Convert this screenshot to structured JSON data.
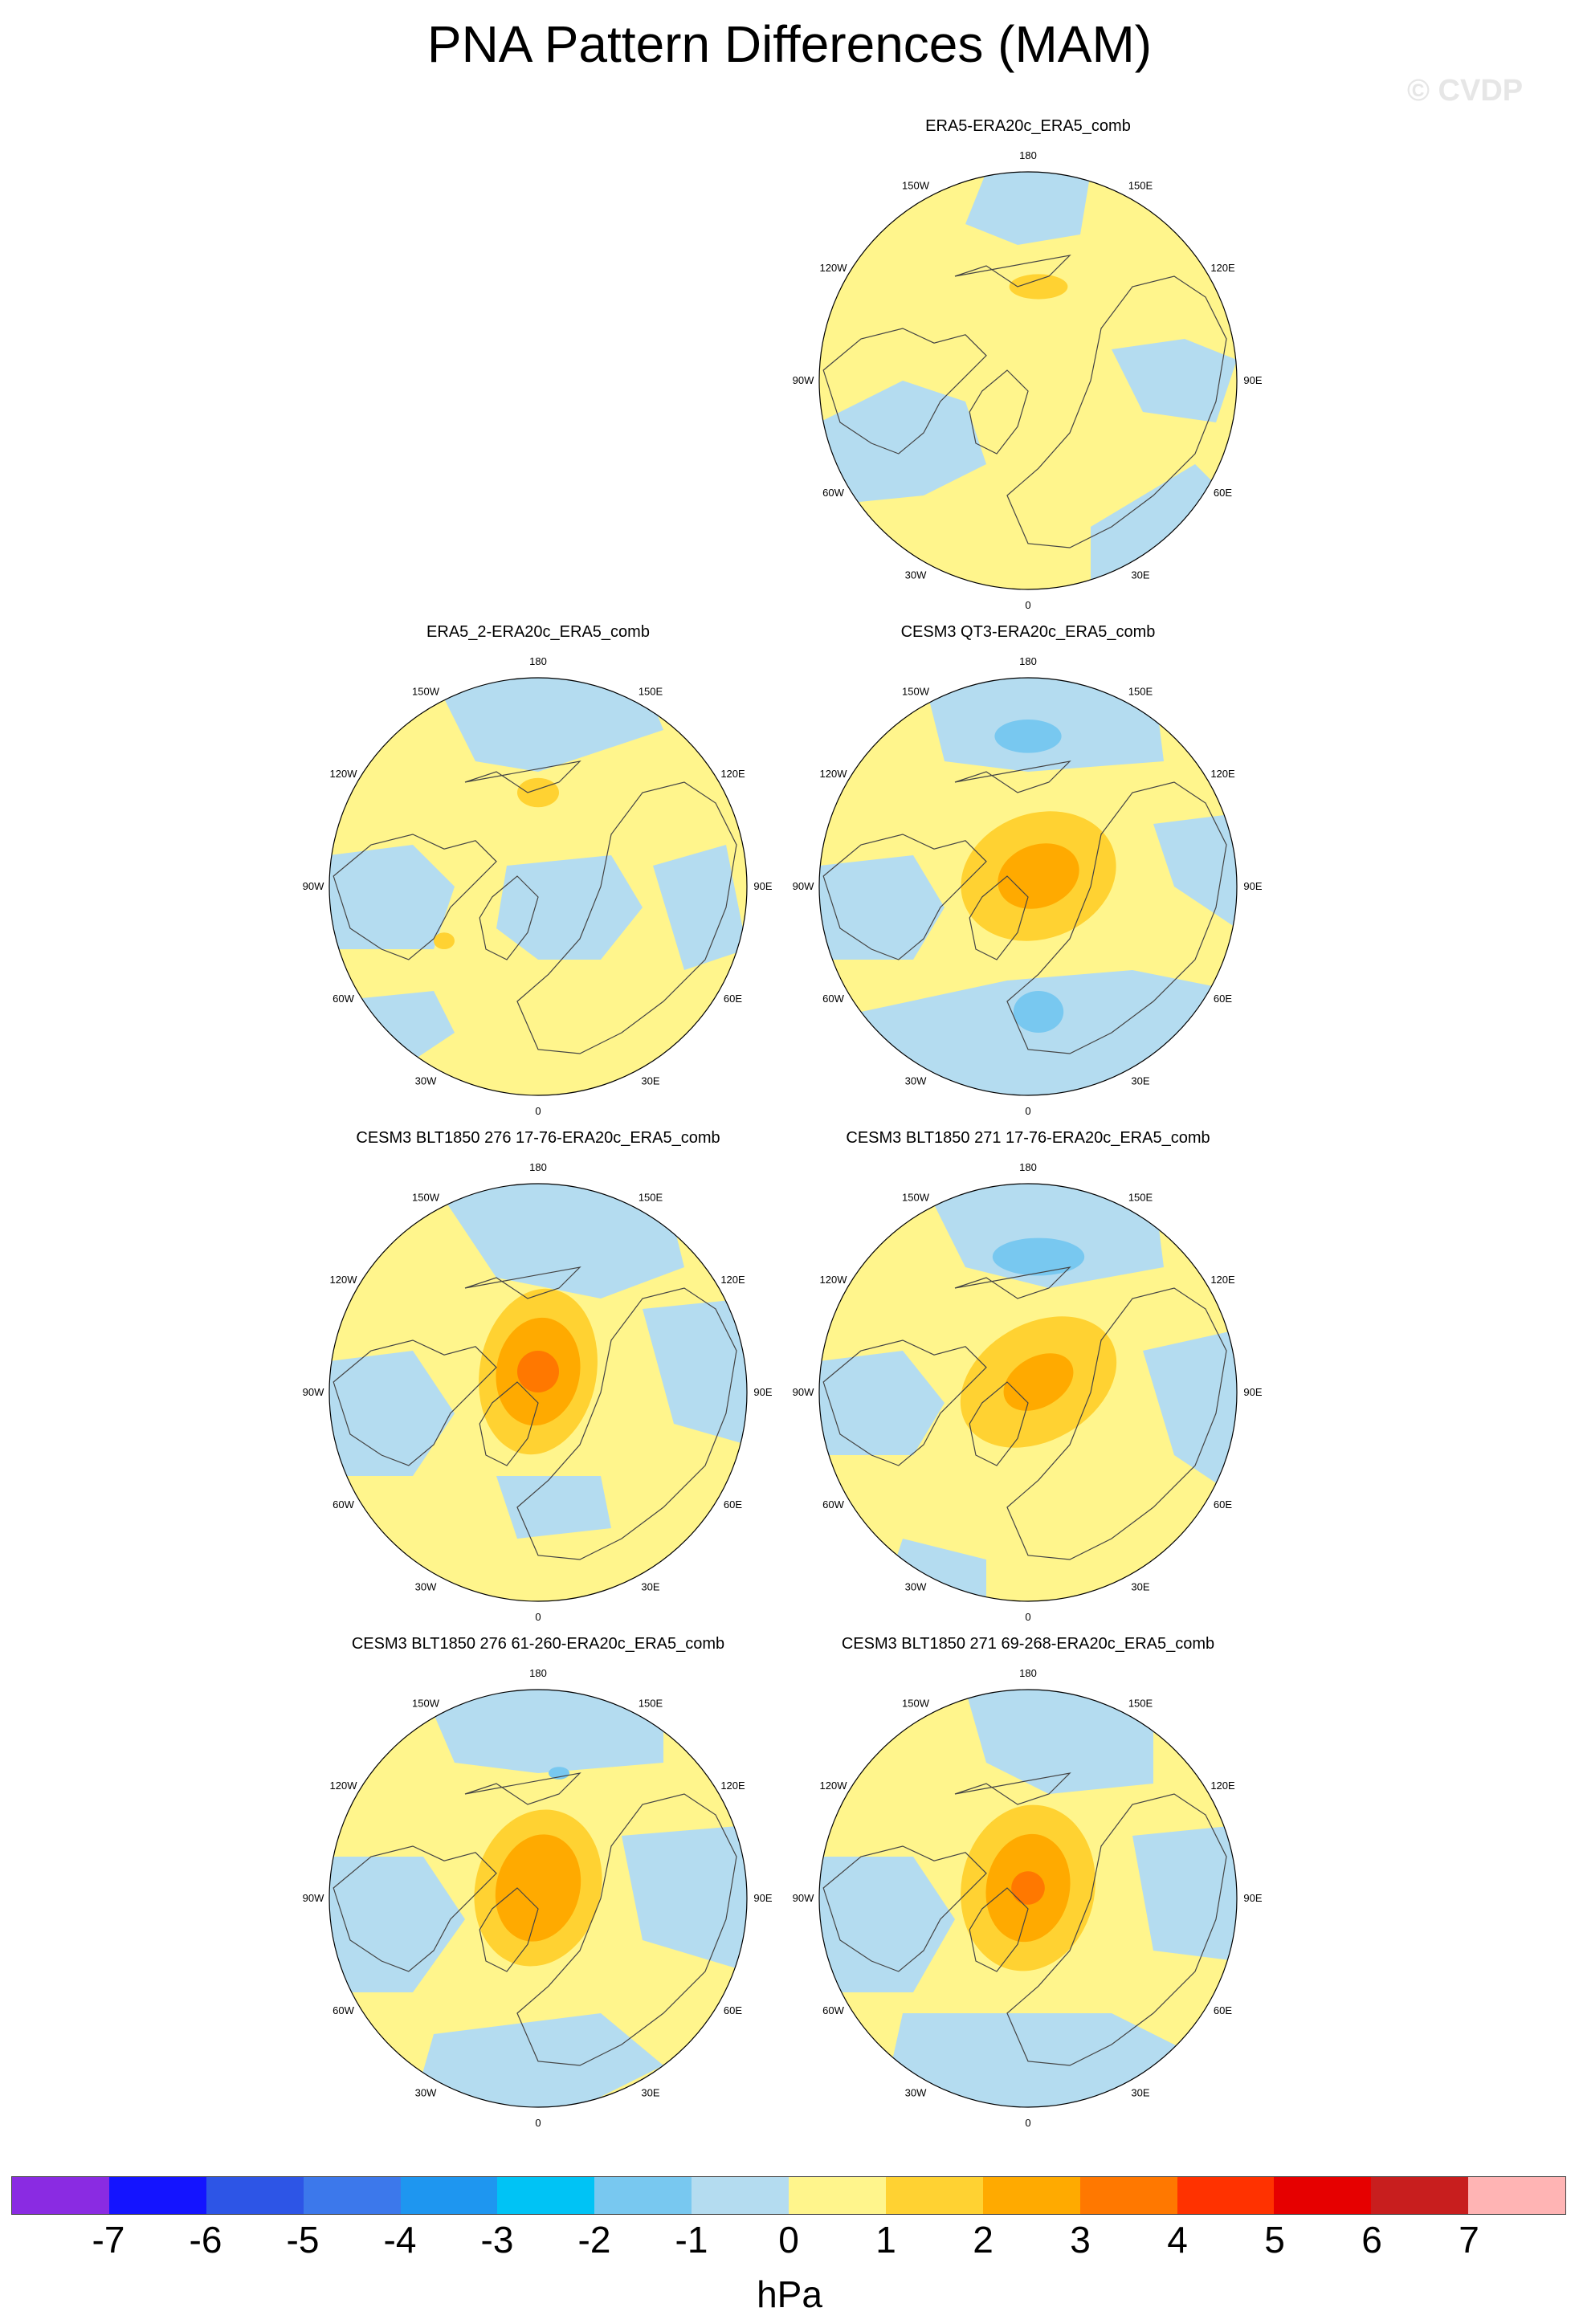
{
  "title": "PNA Pattern Differences (MAM)",
  "watermark": "© CVDP",
  "lon_labels": [
    "180",
    "150E",
    "120E",
    "90E",
    "60E",
    "30E",
    "0",
    "30W",
    "60W",
    "90W",
    "120W",
    "150W"
  ],
  "panels": [
    {
      "title": "ERA5-ERA20c_ERA5_comb",
      "max_anomaly_hPa": 1.5
    },
    {
      "title": "ERA5_2-ERA20c_ERA5_comb",
      "max_anomaly_hPa": 1.5
    },
    {
      "title": "CESM3 QT3-ERA20c_ERA5_comb",
      "max_anomaly_hPa": 2.5
    },
    {
      "title": "CESM3 BLT1850 276 17-76-ERA20c_ERA5_comb",
      "max_anomaly_hPa": 3.5
    },
    {
      "title": "CESM3 BLT1850 271 17-76-ERA20c_ERA5_comb",
      "max_anomaly_hPa": 2.5
    },
    {
      "title": "CESM3 BLT1850 276 61-260-ERA20c_ERA5_comb",
      "max_anomaly_hPa": 3.0
    },
    {
      "title": "CESM3 BLT1850 271 69-268-ERA20c_ERA5_comb",
      "max_anomaly_hPa": 3.5
    }
  ],
  "colorbar": {
    "colors": [
      "#8a2be2",
      "#1414ff",
      "#2d55e6",
      "#3c78eb",
      "#1e96f0",
      "#00c3f5",
      "#78c8f0",
      "#b4dcf0",
      "#fff58c",
      "#ffd232",
      "#ffaa00",
      "#ff7800",
      "#ff3200",
      "#e60000",
      "#c81e1e",
      "#ffb4b4"
    ],
    "tick_labels": [
      "-7",
      "-6",
      "-5",
      "-4",
      "-3",
      "-2",
      "-1",
      "0",
      "1",
      "2",
      "3",
      "4",
      "5",
      "6",
      "7"
    ],
    "units": "hPa"
  }
}
